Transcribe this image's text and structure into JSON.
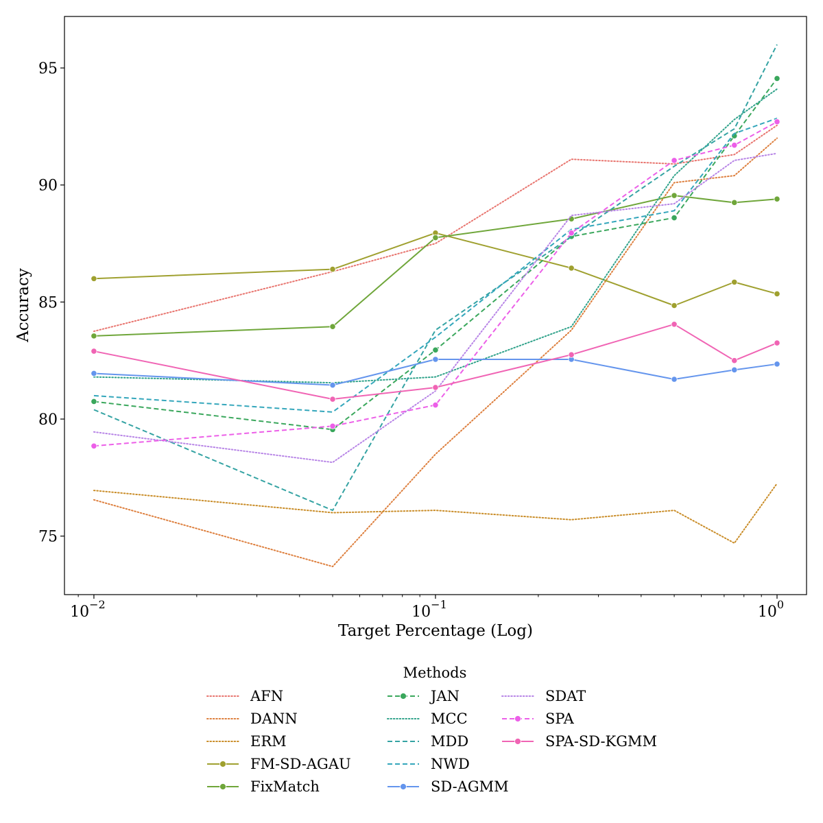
{
  "chart_data": {
    "type": "line",
    "xscale": "log",
    "xlabel": "Target Percentage (Log)",
    "ylabel": "Accuracy",
    "xlim": [
      0.0082,
      1.22
    ],
    "ylim": [
      72.5,
      97.2
    ],
    "yticks": [
      75,
      80,
      85,
      90,
      95
    ],
    "xticks": [
      {
        "value": 0.01,
        "base": "10",
        "exp": "−2"
      },
      {
        "value": 0.1,
        "base": "10",
        "exp": "−1"
      },
      {
        "value": 1,
        "base": "10",
        "exp": "0"
      }
    ],
    "x": [
      0.01,
      0.05,
      0.1,
      0.25,
      0.5,
      0.75,
      1.0
    ],
    "legend": {
      "title": "Methods",
      "placement": "lower-center-outside",
      "columns": 3
    },
    "series": [
      {
        "name": "AFN",
        "color": "#e8746e",
        "style": "dotted",
        "markers": false,
        "values": [
          83.75,
          86.3,
          87.5,
          91.1,
          90.9,
          91.3,
          92.55
        ]
      },
      {
        "name": "DANN",
        "color": "#dd7e3c",
        "style": "dotted",
        "markers": false,
        "values": [
          76.55,
          73.7,
          78.5,
          83.8,
          90.1,
          90.4,
          92.0
        ]
      },
      {
        "name": "ERM",
        "color": "#c98c27",
        "style": "dotted",
        "markers": false,
        "values": [
          76.95,
          76.0,
          76.1,
          75.7,
          76.1,
          74.7,
          77.25
        ]
      },
      {
        "name": "FM-SD-AGAU",
        "color": "#9fa02f",
        "style": "solid",
        "markers": true,
        "values": [
          86.0,
          86.4,
          87.95,
          86.45,
          84.85,
          85.85,
          85.35
        ]
      },
      {
        "name": "FixMatch",
        "color": "#6fa63a",
        "style": "solid",
        "markers": true,
        "values": [
          83.55,
          83.95,
          87.75,
          88.55,
          89.55,
          89.25,
          89.4
        ]
      },
      {
        "name": "JAN",
        "color": "#3aa75c",
        "style": "dashed",
        "markers": true,
        "values": [
          80.75,
          79.55,
          82.95,
          87.8,
          88.6,
          92.1,
          94.55
        ]
      },
      {
        "name": "MCC",
        "color": "#2fa28a",
        "style": "dotted",
        "markers": false,
        "values": [
          81.8,
          81.55,
          81.8,
          83.95,
          90.4,
          92.8,
          94.1
        ]
      },
      {
        "name": "MDD",
        "color": "#34a3a3",
        "style": "dashed",
        "markers": false,
        "values": [
          80.4,
          76.1,
          83.8,
          87.8,
          90.8,
          92.4,
          96.0
        ]
      },
      {
        "name": "NWD",
        "color": "#33a6bb",
        "style": "dashed",
        "markers": false,
        "values": [
          81.0,
          80.3,
          83.5,
          88.1,
          88.9,
          92.2,
          92.85
        ]
      },
      {
        "name": "SD-AGMM",
        "color": "#6495ed",
        "style": "solid",
        "markers": true,
        "values": [
          81.95,
          81.45,
          82.55,
          82.55,
          81.7,
          82.1,
          82.35
        ]
      },
      {
        "name": "SDAT",
        "color": "#b784e6",
        "style": "dotted",
        "markers": false,
        "values": [
          79.45,
          78.15,
          81.2,
          88.7,
          89.2,
          91.05,
          91.35
        ]
      },
      {
        "name": "SPA",
        "color": "#ec5fe8",
        "style": "dashed",
        "markers": true,
        "values": [
          78.85,
          79.7,
          80.6,
          87.95,
          91.05,
          91.7,
          92.7
        ]
      },
      {
        "name": "SPA-SD-KGMM",
        "color": "#f064b4",
        "style": "solid",
        "markers": true,
        "values": [
          82.9,
          80.85,
          81.35,
          82.75,
          84.05,
          82.5,
          83.25
        ]
      }
    ]
  }
}
